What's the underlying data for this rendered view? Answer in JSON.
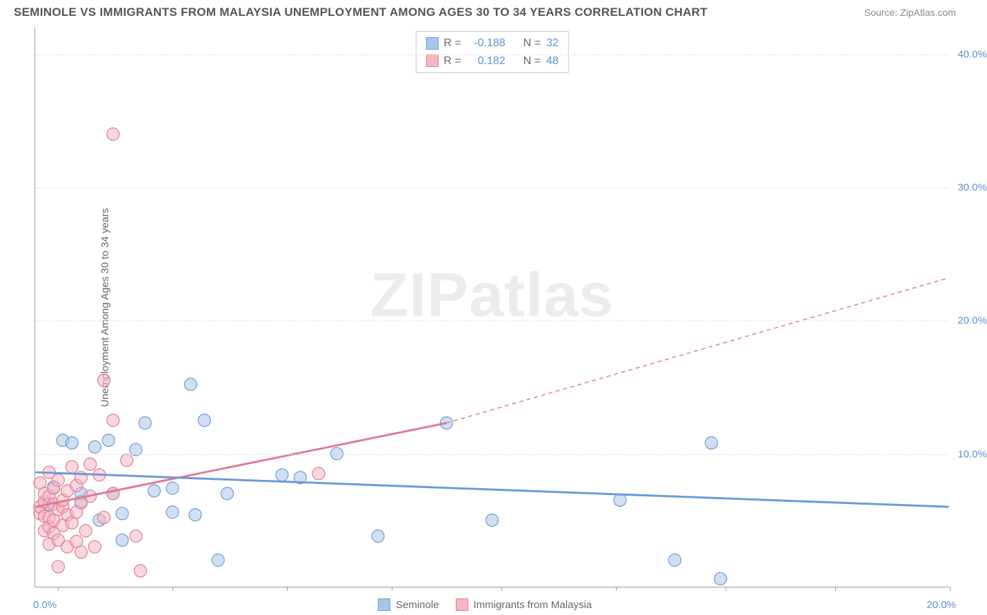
{
  "title": "SEMINOLE VS IMMIGRANTS FROM MALAYSIA UNEMPLOYMENT AMONG AGES 30 TO 34 YEARS CORRELATION CHART",
  "source": "Source: ZipAtlas.com",
  "ylabel": "Unemployment Among Ages 30 to 34 years",
  "watermark_a": "ZIP",
  "watermark_b": "atlas",
  "chart": {
    "type": "scatter",
    "xlim": [
      0,
      20
    ],
    "ylim": [
      0,
      42
    ],
    "x_min_label": "0.0%",
    "x_max_label": "20.0%",
    "y_ticks": [
      10,
      20,
      30,
      40
    ],
    "y_tick_labels": [
      "10.0%",
      "20.0%",
      "30.0%",
      "40.0%"
    ],
    "x_tick_positions": [
      0.5,
      3.0,
      5.5,
      7.8,
      10.2,
      12.7,
      15.1,
      17.5,
      20.0
    ],
    "grid_color": "#dddddd",
    "axis_color": "#999999",
    "background_color": "#ffffff"
  },
  "series": [
    {
      "name": "Seminole",
      "fill_color": "#a9c6e8",
      "stroke_color": "#6a9bd8",
      "fill_opacity": 0.55,
      "marker_radius": 9,
      "R_label": "R =",
      "R_value": "-0.188",
      "N_label": "N =",
      "N_value": "32",
      "trend": {
        "x1": 0,
        "y1": 8.6,
        "x2": 20,
        "y2": 6.0,
        "dash": "none",
        "width": 3
      },
      "points": [
        [
          0.3,
          6.2
        ],
        [
          0.4,
          7.5
        ],
        [
          0.6,
          11.0
        ],
        [
          0.8,
          10.8
        ],
        [
          1.0,
          6.4
        ],
        [
          1.0,
          7.0
        ],
        [
          1.3,
          10.5
        ],
        [
          1.4,
          5.0
        ],
        [
          1.6,
          11.0
        ],
        [
          1.7,
          7.0
        ],
        [
          1.9,
          3.5
        ],
        [
          1.9,
          5.5
        ],
        [
          2.2,
          10.3
        ],
        [
          2.4,
          12.3
        ],
        [
          2.6,
          7.2
        ],
        [
          3.0,
          5.6
        ],
        [
          3.0,
          7.4
        ],
        [
          3.4,
          15.2
        ],
        [
          3.5,
          5.4
        ],
        [
          3.7,
          12.5
        ],
        [
          4.0,
          2.0
        ],
        [
          4.2,
          7.0
        ],
        [
          5.4,
          8.4
        ],
        [
          5.8,
          8.2
        ],
        [
          6.6,
          10.0
        ],
        [
          7.5,
          3.8
        ],
        [
          9.0,
          12.3
        ],
        [
          10.0,
          5.0
        ],
        [
          12.8,
          6.5
        ],
        [
          14.0,
          2.0
        ],
        [
          14.8,
          10.8
        ],
        [
          15.0,
          0.6
        ]
      ]
    },
    {
      "name": "Immigrants from Malaysia",
      "fill_color": "#f4b6c2",
      "stroke_color": "#e17a97",
      "fill_opacity": 0.55,
      "marker_radius": 9,
      "R_label": "R =",
      "R_value": "0.182",
      "N_label": "N =",
      "N_value": "48",
      "trend_solid": {
        "x1": 0,
        "y1": 6.0,
        "x2": 9.0,
        "y2": 12.3,
        "width": 3
      },
      "trend_dashed": {
        "x1": 9.0,
        "y1": 12.3,
        "x2": 20,
        "y2": 23.2,
        "dash": "6,5",
        "width": 1.5
      },
      "points": [
        [
          0.1,
          5.5
        ],
        [
          0.1,
          6.0
        ],
        [
          0.1,
          7.8
        ],
        [
          0.2,
          4.2
        ],
        [
          0.2,
          5.3
        ],
        [
          0.2,
          6.4
        ],
        [
          0.2,
          7.0
        ],
        [
          0.3,
          3.2
        ],
        [
          0.3,
          4.5
        ],
        [
          0.3,
          5.2
        ],
        [
          0.3,
          6.8
        ],
        [
          0.3,
          8.6
        ],
        [
          0.4,
          4.0
        ],
        [
          0.4,
          5.0
        ],
        [
          0.4,
          6.2
        ],
        [
          0.4,
          7.4
        ],
        [
          0.5,
          3.5
        ],
        [
          0.5,
          5.8
        ],
        [
          0.5,
          8.0
        ],
        [
          0.5,
          1.5
        ],
        [
          0.6,
          4.6
        ],
        [
          0.6,
          6.0
        ],
        [
          0.6,
          6.5
        ],
        [
          0.7,
          3.0
        ],
        [
          0.7,
          5.4
        ],
        [
          0.7,
          7.2
        ],
        [
          0.8,
          4.8
        ],
        [
          0.8,
          9.0
        ],
        [
          0.9,
          3.4
        ],
        [
          0.9,
          5.6
        ],
        [
          0.9,
          7.6
        ],
        [
          1.0,
          2.6
        ],
        [
          1.0,
          6.3
        ],
        [
          1.0,
          8.2
        ],
        [
          1.1,
          4.2
        ],
        [
          1.2,
          6.8
        ],
        [
          1.2,
          9.2
        ],
        [
          1.3,
          3.0
        ],
        [
          1.4,
          8.4
        ],
        [
          1.5,
          5.2
        ],
        [
          1.5,
          15.5
        ],
        [
          1.7,
          7.0
        ],
        [
          1.7,
          12.5
        ],
        [
          1.7,
          34.0
        ],
        [
          2.0,
          9.5
        ],
        [
          2.2,
          3.8
        ],
        [
          2.3,
          1.2
        ],
        [
          6.2,
          8.5
        ]
      ]
    }
  ]
}
